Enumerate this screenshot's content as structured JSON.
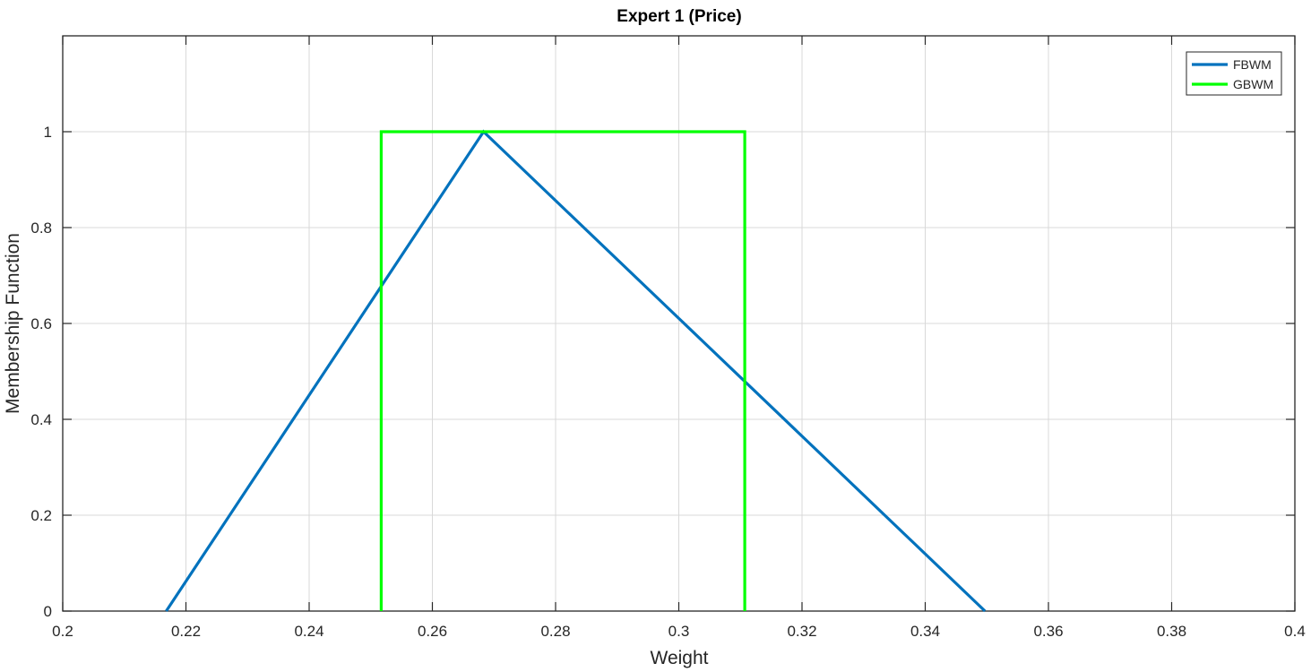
{
  "chart_data": {
    "type": "line",
    "title": "Expert 1 (Price)",
    "xlabel": "Weight",
    "ylabel": "Membership Function",
    "xlim": [
      0.2,
      0.4
    ],
    "ylim": [
      0,
      1.2
    ],
    "xticks": [
      0.2,
      0.22,
      0.24,
      0.26,
      0.28,
      0.3,
      0.32,
      0.34,
      0.36,
      0.38,
      0.4
    ],
    "xtick_labels": [
      "0.2",
      "0.22",
      "0.24",
      "0.26",
      "0.28",
      "0.3",
      "0.32",
      "0.34",
      "0.36",
      "0.38",
      "0.4"
    ],
    "yticks": [
      0,
      0.2,
      0.4,
      0.6,
      0.8,
      1
    ],
    "ytick_labels": [
      "0",
      "0.2",
      "0.4",
      "0.6",
      "0.8",
      "1"
    ],
    "grid": true,
    "legend_position": "top-right",
    "series": [
      {
        "name": "FBWM",
        "color": "#0072BD",
        "x": [
          0.2168,
          0.2683,
          0.3497
        ],
        "y": [
          0,
          1,
          0
        ]
      },
      {
        "name": "GBWM",
        "color": "#00FF00",
        "x": [
          0.2517,
          0.2517,
          0.3107,
          0.3107
        ],
        "y": [
          0,
          1,
          1,
          0
        ]
      }
    ]
  }
}
